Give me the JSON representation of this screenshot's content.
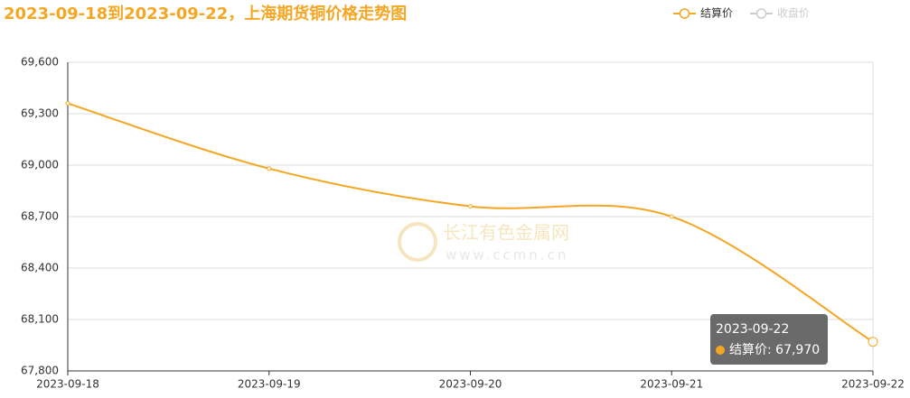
{
  "chart_data": {
    "type": "line",
    "title": "2023-09-18到2023-09-22，上海期货铜价格走势图",
    "categories": [
      "2023-09-18",
      "2023-09-19",
      "2023-09-20",
      "2023-09-21",
      "2023-09-22"
    ],
    "series": [
      {
        "name": "结算价",
        "color": "#f5a623",
        "values": [
          69360,
          68980,
          68760,
          68700,
          67970
        ]
      },
      {
        "name": "收盘价",
        "color": "#cccccc",
        "values": [
          null,
          null,
          null,
          null,
          null
        ]
      }
    ],
    "ylim": [
      67800,
      69600
    ],
    "yticks": [
      {
        "value": 67800,
        "label": "67,800"
      },
      {
        "value": 68100,
        "label": "68,100"
      },
      {
        "value": 68400,
        "label": "68,400"
      },
      {
        "value": 68700,
        "label": "68,700"
      },
      {
        "value": 69000,
        "label": "69,000"
      },
      {
        "value": 69300,
        "label": "69,300"
      },
      {
        "value": 69600,
        "label": "69,600"
      }
    ],
    "grid": true,
    "legend": "top-right",
    "smooth": true,
    "watermark": {
      "name": "长江有色金属网",
      "url": "www.ccmn.cn"
    },
    "tooltip": {
      "title": "2023-09-22",
      "text": "结算价: 67,970"
    }
  }
}
